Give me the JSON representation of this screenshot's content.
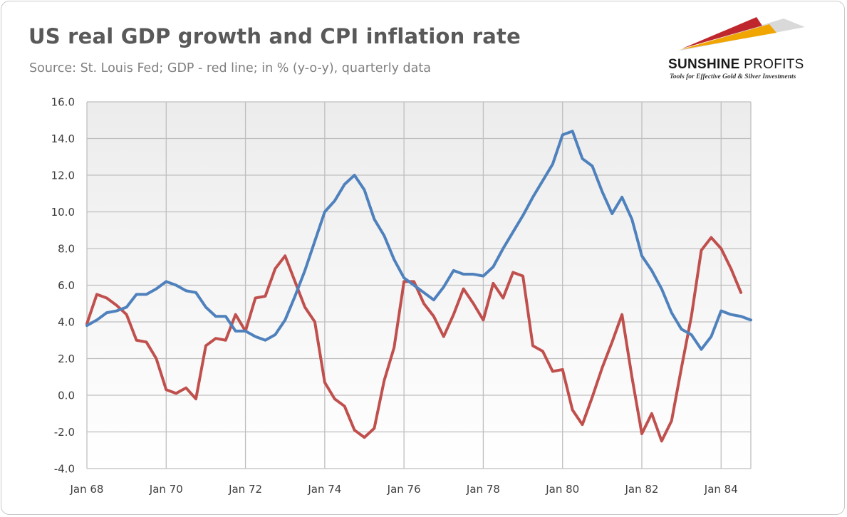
{
  "header": {
    "title": "US real GDP growth and CPI inflation rate",
    "subtitle": "Source: St. Louis Fed; GDP - red line; in % (y-o-y), quarterly data"
  },
  "logo": {
    "name_bold": "SUNSHINE",
    "name_regular": " PROFITS",
    "tagline": "Tools for Effective Gold & Silver Investments",
    "colors": [
      "#c0272d",
      "#f0a500",
      "#d9d9d9"
    ]
  },
  "chart_data": {
    "type": "line",
    "title": "US real GDP growth and CPI inflation rate",
    "subtitle": "Source: St. Louis Fed; GDP - red line; in % (y-o-y), quarterly data",
    "xlabel": "",
    "ylabel": "",
    "ylim": [
      -4.0,
      16.0
    ],
    "yticks": [
      "16.0",
      "14.0",
      "12.0",
      "10.0",
      "8.0",
      "6.0",
      "4.0",
      "2.0",
      "0.0",
      "-2.0",
      "-4.0"
    ],
    "xticks": [
      "Jan 68",
      "Jan 70",
      "Jan 72",
      "Jan 74",
      "Jan 76",
      "Jan 78",
      "Jan 80",
      "Jan 82",
      "Jan 84"
    ],
    "x_start": "1968 Q1",
    "frequency": "quarterly",
    "grid": true,
    "legend": "none",
    "series": [
      {
        "name": "GDP",
        "color": "#c0504d",
        "values": [
          3.9,
          5.5,
          5.3,
          4.9,
          4.4,
          3.0,
          2.9,
          2.0,
          0.3,
          0.1,
          0.4,
          -0.2,
          2.7,
          3.1,
          3.0,
          4.4,
          3.5,
          5.3,
          5.4,
          6.9,
          7.6,
          6.2,
          4.8,
          4.0,
          0.7,
          -0.2,
          -0.6,
          -1.9,
          -2.3,
          -1.8,
          0.8,
          2.6,
          6.2,
          6.2,
          5.0,
          4.3,
          3.2,
          4.4,
          5.8,
          5.0,
          4.1,
          6.1,
          5.3,
          6.7,
          6.5,
          2.7,
          2.4,
          1.3,
          1.4,
          -0.8,
          -1.6,
          -0.1,
          1.5,
          2.9,
          4.4,
          1.0,
          -2.1,
          -1.0,
          -2.5,
          -1.4,
          1.5,
          4.3,
          7.9,
          8.6,
          8.0,
          6.9,
          5.6
        ]
      },
      {
        "name": "CPI",
        "color": "#4f81bd",
        "values": [
          3.8,
          4.1,
          4.5,
          4.6,
          4.8,
          5.5,
          5.5,
          5.8,
          6.2,
          6.0,
          5.7,
          5.6,
          4.8,
          4.3,
          4.3,
          3.5,
          3.5,
          3.2,
          3.0,
          3.3,
          4.1,
          5.4,
          6.8,
          8.4,
          10.0,
          10.6,
          11.5,
          12.0,
          11.2,
          9.6,
          8.7,
          7.4,
          6.4,
          6.0,
          5.6,
          5.2,
          5.9,
          6.8,
          6.6,
          6.6,
          6.5,
          7.0,
          8.0,
          8.9,
          9.8,
          10.8,
          11.7,
          12.6,
          14.2,
          14.4,
          12.9,
          12.5,
          11.1,
          9.9,
          10.8,
          9.6,
          7.6,
          6.8,
          5.8,
          4.5,
          3.6,
          3.3,
          2.5,
          3.2,
          4.6,
          4.4,
          4.3,
          4.1
        ]
      }
    ]
  }
}
